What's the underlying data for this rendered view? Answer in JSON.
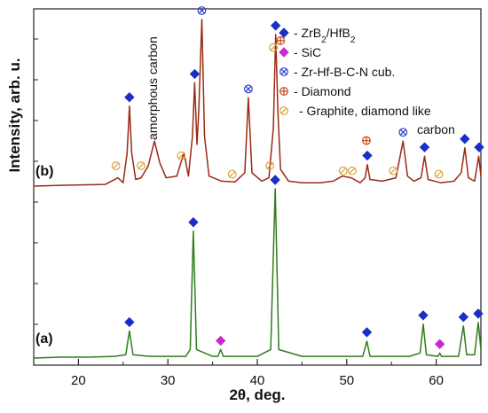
{
  "chart_data": {
    "type": "line",
    "xlabel": "2θ, deg.",
    "ylabel": "Intensity, arb. u.",
    "xlim": [
      15,
      65
    ],
    "x_ticks": [
      "20",
      "30",
      "40",
      "50",
      "60"
    ],
    "grid": false,
    "legend_position": "top-right",
    "annotation": "amorphous carbon",
    "series": [
      {
        "name": "(b)",
        "color": "#9a2a12",
        "points": [
          [
            15,
            0.0
          ],
          [
            18,
            0.005
          ],
          [
            21,
            0.008
          ],
          [
            23,
            0.01
          ],
          [
            24.4,
            0.05
          ],
          [
            25.0,
            0.02
          ],
          [
            25.45,
            0.2
          ],
          [
            25.7,
            0.48
          ],
          [
            25.95,
            0.2
          ],
          [
            26.4,
            0.04
          ],
          [
            27,
            0.05
          ],
          [
            27.8,
            0.12
          ],
          [
            28.5,
            0.27
          ],
          [
            29.1,
            0.14
          ],
          [
            29.8,
            0.05
          ],
          [
            31,
            0.06
          ],
          [
            31.8,
            0.2
          ],
          [
            32.3,
            0.06
          ],
          [
            32.75,
            0.3
          ],
          [
            33.0,
            0.62
          ],
          [
            33.25,
            0.25
          ],
          [
            33.45,
            0.45
          ],
          [
            33.8,
            1.0
          ],
          [
            34.1,
            0.3
          ],
          [
            34.6,
            0.06
          ],
          [
            36,
            0.03
          ],
          [
            37.5,
            0.025
          ],
          [
            38.6,
            0.08
          ],
          [
            39.0,
            0.53
          ],
          [
            39.4,
            0.08
          ],
          [
            40.5,
            0.03
          ],
          [
            41.3,
            0.05
          ],
          [
            41.8,
            0.35
          ],
          [
            42.05,
            0.91
          ],
          [
            42.3,
            0.45
          ],
          [
            42.6,
            0.1
          ],
          [
            43.5,
            0.03
          ],
          [
            45,
            0.02
          ],
          [
            47,
            0.02
          ],
          [
            48.5,
            0.03
          ],
          [
            49.5,
            0.06
          ],
          [
            50.5,
            0.05
          ],
          [
            51.5,
            0.02
          ],
          [
            52.05,
            0.05
          ],
          [
            52.3,
            0.13
          ],
          [
            52.6,
            0.04
          ],
          [
            54,
            0.03
          ],
          [
            55.5,
            0.05
          ],
          [
            56.3,
            0.27
          ],
          [
            56.8,
            0.06
          ],
          [
            57.5,
            0.03
          ],
          [
            58.3,
            0.05
          ],
          [
            58.7,
            0.18
          ],
          [
            59.1,
            0.04
          ],
          [
            60.5,
            0.02
          ],
          [
            62,
            0.03
          ],
          [
            62.8,
            0.08
          ],
          [
            63.2,
            0.23
          ],
          [
            63.6,
            0.05
          ],
          [
            64.3,
            0.03
          ],
          [
            64.75,
            0.18
          ],
          [
            65,
            0.06
          ]
        ]
      },
      {
        "name": "(a)",
        "color": "#2f7d1c",
        "points": [
          [
            15,
            0.0
          ],
          [
            18,
            0.005
          ],
          [
            21,
            0.005
          ],
          [
            24,
            0.01
          ],
          [
            25.3,
            0.02
          ],
          [
            25.7,
            0.16
          ],
          [
            26.1,
            0.02
          ],
          [
            28,
            0.01
          ],
          [
            30,
            0.01
          ],
          [
            32,
            0.01
          ],
          [
            32.5,
            0.05
          ],
          [
            32.85,
            0.75
          ],
          [
            33.2,
            0.05
          ],
          [
            35,
            0.01
          ],
          [
            35.6,
            0.01
          ],
          [
            35.9,
            0.05
          ],
          [
            36.2,
            0.01
          ],
          [
            38,
            0.01
          ],
          [
            40,
            0.01
          ],
          [
            41.5,
            0.05
          ],
          [
            42.0,
            1.0
          ],
          [
            42.4,
            0.05
          ],
          [
            45,
            0.01
          ],
          [
            48,
            0.01
          ],
          [
            50,
            0.01
          ],
          [
            51.8,
            0.01
          ],
          [
            52.25,
            0.1
          ],
          [
            52.6,
            0.01
          ],
          [
            55,
            0.01
          ],
          [
            57,
            0.01
          ],
          [
            58.2,
            0.03
          ],
          [
            58.55,
            0.2
          ],
          [
            58.9,
            0.02
          ],
          [
            60.2,
            0.01
          ],
          [
            60.4,
            0.03
          ],
          [
            60.6,
            0.01
          ],
          [
            62.5,
            0.01
          ],
          [
            63.05,
            0.19
          ],
          [
            63.4,
            0.02
          ],
          [
            64.3,
            0.02
          ],
          [
            64.7,
            0.21
          ],
          [
            65,
            0.05
          ]
        ]
      }
    ],
    "phases": [
      {
        "name": "ZrB2/HfB2",
        "marker": "diamond",
        "color": "#1a2ec9"
      },
      {
        "name": "SiC",
        "marker": "diamond",
        "color": "#c82ad1"
      },
      {
        "name": "Zr-Hf-B-C-N cub.",
        "marker": "circle-x",
        "color": "#2c3fc8"
      },
      {
        "name": "Diamond",
        "marker": "circle-plus",
        "color": "#c9431b"
      },
      {
        "name": "Graphite, diamond like carbon",
        "marker": "circle-slash",
        "color": "#d8a23a"
      }
    ],
    "markers": [
      {
        "series": 0,
        "phase": 0,
        "x": 25.7,
        "y": 0.48
      },
      {
        "series": 0,
        "phase": 0,
        "x": 33.0,
        "y": 0.62
      },
      {
        "series": 0,
        "phase": 0,
        "x": 42.05,
        "y": 0.91
      },
      {
        "series": 0,
        "phase": 0,
        "x": 52.3,
        "y": 0.13
      },
      {
        "series": 0,
        "phase": 0,
        "x": 58.7,
        "y": 0.18
      },
      {
        "series": 0,
        "phase": 0,
        "x": 63.2,
        "y": 0.23
      },
      {
        "series": 0,
        "phase": 0,
        "x": 64.8,
        "y": 0.18
      },
      {
        "series": 0,
        "phase": 2,
        "x": 33.8,
        "y": 1.0
      },
      {
        "series": 0,
        "phase": 2,
        "x": 39.0,
        "y": 0.53
      },
      {
        "series": 0,
        "phase": 2,
        "x": 56.3,
        "y": 0.27
      },
      {
        "series": 0,
        "phase": 3,
        "x": 42.6,
        "y": 0.82
      },
      {
        "series": 0,
        "phase": 3,
        "x": 52.2,
        "y": 0.22
      },
      {
        "series": 0,
        "phase": 4,
        "x": 24.2,
        "y": 0.09
      },
      {
        "series": 0,
        "phase": 4,
        "x": 27.0,
        "y": 0.09
      },
      {
        "series": 0,
        "phase": 4,
        "x": 31.5,
        "y": 0.15
      },
      {
        "series": 0,
        "phase": 4,
        "x": 37.2,
        "y": 0.04
      },
      {
        "series": 0,
        "phase": 4,
        "x": 41.4,
        "y": 0.09
      },
      {
        "series": 0,
        "phase": 4,
        "x": 41.8,
        "y": 0.8
      },
      {
        "series": 0,
        "phase": 4,
        "x": 49.6,
        "y": 0.06
      },
      {
        "series": 0,
        "phase": 4,
        "x": 50.6,
        "y": 0.06
      },
      {
        "series": 0,
        "phase": 4,
        "x": 55.2,
        "y": 0.06
      },
      {
        "series": 0,
        "phase": 4,
        "x": 60.3,
        "y": 0.04
      },
      {
        "series": 1,
        "phase": 0,
        "x": 25.7,
        "y": 0.16
      },
      {
        "series": 1,
        "phase": 0,
        "x": 32.85,
        "y": 0.75
      },
      {
        "series": 1,
        "phase": 0,
        "x": 42.0,
        "y": 1.0
      },
      {
        "series": 1,
        "phase": 0,
        "x": 52.25,
        "y": 0.1
      },
      {
        "series": 1,
        "phase": 0,
        "x": 58.55,
        "y": 0.2
      },
      {
        "series": 1,
        "phase": 0,
        "x": 63.05,
        "y": 0.19
      },
      {
        "series": 1,
        "phase": 0,
        "x": 64.7,
        "y": 0.21
      },
      {
        "series": 1,
        "phase": 1,
        "x": 35.9,
        "y": 0.05
      },
      {
        "series": 1,
        "phase": 1,
        "x": 60.4,
        "y": 0.03
      }
    ]
  }
}
